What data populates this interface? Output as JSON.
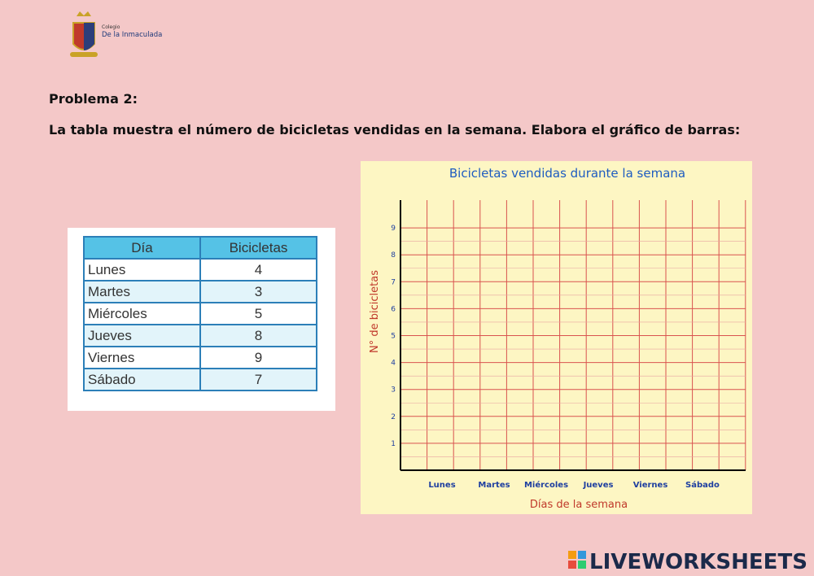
{
  "header": {
    "school_line1": "Colegio",
    "school_line2": "De la Inmaculada"
  },
  "problem": {
    "title": "Problema 2:",
    "statement": "La tabla muestra el número de bicicletas vendidas en la semana. Elabora el gráfico de barras:"
  },
  "table": {
    "columns": [
      "Día",
      "Bicicletas"
    ],
    "rows": [
      [
        "Lunes",
        "4"
      ],
      [
        "Martes",
        "3"
      ],
      [
        "Miércoles",
        "5"
      ],
      [
        "Jueves",
        "8"
      ],
      [
        "Viernes",
        "9"
      ],
      [
        "Sábado",
        "7"
      ]
    ]
  },
  "grid": {
    "title": "Bicicletas vendidas durante la semana",
    "xlabel": "Días de la semana",
    "ylabel": "N° de bicicletas",
    "yticks": [
      1,
      2,
      3,
      4,
      5,
      6,
      7,
      8,
      9
    ],
    "categories": [
      "Lunes",
      "Martes",
      "Miércoles",
      "Jueves",
      "Viernes",
      "Sábado"
    ]
  },
  "footer": {
    "brand": "LIVEWORKSHEETS"
  }
}
